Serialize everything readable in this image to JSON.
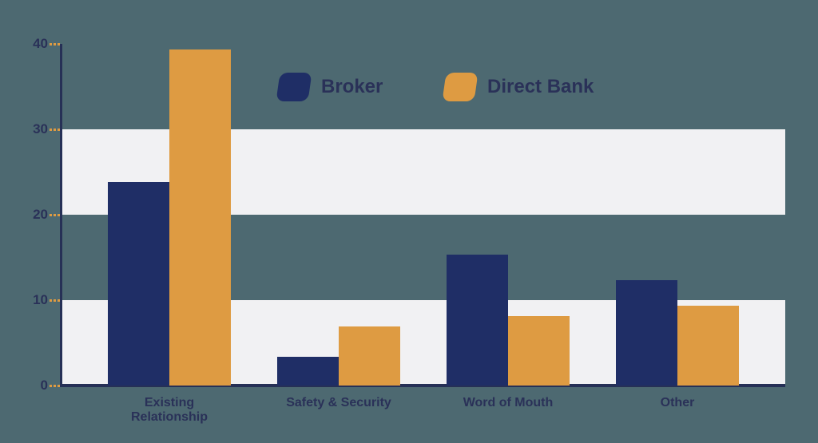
{
  "chart_data": {
    "type": "bar",
    "title": "",
    "xlabel": "",
    "ylabel": "",
    "categories": [
      "Existing Relationship",
      "Safety & Security",
      "Word of Mouth",
      "Other"
    ],
    "series": [
      {
        "name": "Broker",
        "color": "#1f2e66",
        "values": [
          23.8,
          3.4,
          15.3,
          12.3
        ]
      },
      {
        "name": "Direct Bank",
        "color": "#de9b42",
        "values": [
          39.3,
          6.9,
          8.1,
          9.3
        ]
      }
    ],
    "ylim": [
      0,
      40
    ],
    "y_ticks": [
      40,
      30,
      20,
      10,
      0
    ],
    "grid_bands": [
      [
        0,
        10
      ],
      [
        20,
        30
      ]
    ],
    "grid": "horizontal-bands",
    "legend_position": "top-center"
  },
  "colors": {
    "background": "#4d6971",
    "band": "#f1f1f3",
    "axis": "#263056",
    "tick": "#de9b42",
    "label_text": "#2a3158"
  }
}
